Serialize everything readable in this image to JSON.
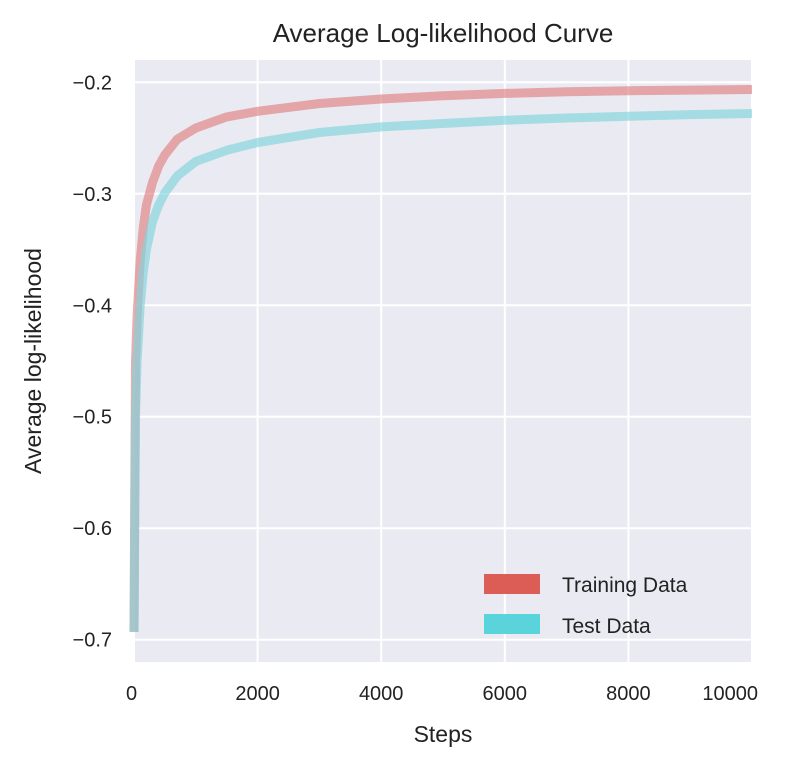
{
  "chart_data": {
    "type": "line",
    "title": "Average Log-likelihood Curve",
    "xlabel": "Steps",
    "ylabel": "Average log-likelihood",
    "xlim": [
      0,
      10000
    ],
    "ylim": [
      -0.72,
      -0.18
    ],
    "xticks": [
      0,
      2000,
      4000,
      6000,
      8000,
      10000
    ],
    "xtick_labels": [
      "0",
      "2000",
      "4000",
      "6000",
      "8000",
      "10000"
    ],
    "yticks": [
      -0.2,
      -0.3,
      -0.4,
      -0.5,
      -0.6,
      -0.7
    ],
    "ytick_labels": [
      "−0.2",
      "−0.3",
      "−0.4",
      "−0.5",
      "−0.6",
      "−0.7"
    ],
    "grid": true,
    "legend_position": "bottom-right",
    "series": [
      {
        "name": "Training Data",
        "color": "#e07f7f",
        "legend_color": "#dc5c56",
        "x": [
          0,
          25,
          50,
          100,
          150,
          200,
          300,
          400,
          500,
          700,
          1000,
          1500,
          2000,
          3000,
          4000,
          5000,
          6000,
          7000,
          8000,
          9000,
          10000
        ],
        "y": [
          -0.693,
          -0.45,
          -0.41,
          -0.36,
          -0.33,
          -0.31,
          -0.29,
          -0.275,
          -0.265,
          -0.251,
          -0.241,
          -0.231,
          -0.226,
          -0.219,
          -0.215,
          -0.212,
          -0.21,
          -0.2085,
          -0.2075,
          -0.207,
          -0.2065
        ]
      },
      {
        "name": "Test Data",
        "color": "#7fd4dc",
        "legend_color": "#5ad3da",
        "x": [
          0,
          25,
          50,
          100,
          150,
          200,
          300,
          400,
          500,
          700,
          1000,
          1500,
          2000,
          3000,
          4000,
          5000,
          6000,
          7000,
          8000,
          9000,
          10000
        ],
        "y": [
          -0.693,
          -0.5,
          -0.45,
          -0.4,
          -0.37,
          -0.35,
          -0.325,
          -0.31,
          -0.299,
          -0.284,
          -0.271,
          -0.261,
          -0.254,
          -0.245,
          -0.24,
          -0.237,
          -0.234,
          -0.232,
          -0.2305,
          -0.229,
          -0.228
        ]
      }
    ]
  }
}
